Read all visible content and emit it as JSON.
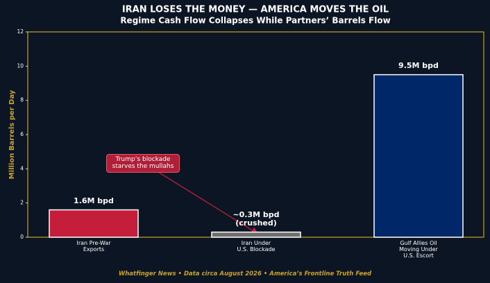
{
  "chart_data": {
    "type": "bar",
    "title": "IRAN LOSES THE MONEY — AMERICA MOVES THE OIL",
    "subtitle": "Regime Cash Flow Collapses While Partners’ Barrels Flow",
    "y_label": "Million Barrels per Day",
    "categories": [
      "Iran Pre-War\nExports",
      "Iran Under\nU.S. Blockade",
      "Gulf Allies Oil\nMoving Under\nU.S. Escort"
    ],
    "values": [
      1.6,
      0.3,
      9.5
    ],
    "value_labels": [
      "1.6M bpd",
      "~0.3M bpd\n(crushed)",
      "9.5M bpd"
    ],
    "colors": [
      "#c41e3a",
      "#6e6e6e",
      "#002868"
    ],
    "ylim": [
      0,
      12
    ],
    "yticks": [
      0,
      2,
      4,
      6,
      8,
      10,
      12
    ],
    "annotation": "Trump’s blockade\nstarves the mullahs",
    "footer": "Whatfinger News  •  Data circa August 2026  •  America’s Frontline Truth Feed"
  }
}
